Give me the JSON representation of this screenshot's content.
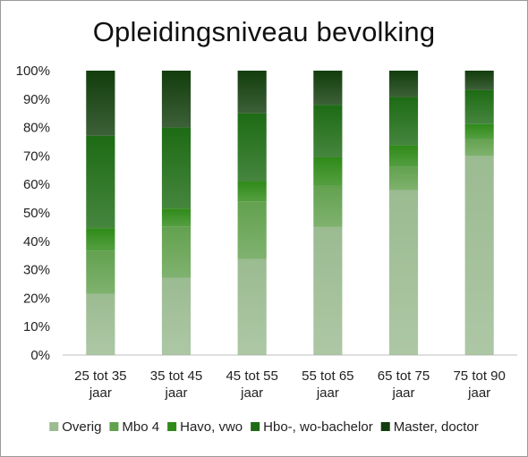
{
  "chart_data": {
    "type": "bar",
    "stacked": true,
    "title": "Opleidingsniveau bevolking",
    "xlabel": "",
    "ylabel": "",
    "ylim": [
      0,
      100
    ],
    "yticks": [
      "0%",
      "10%",
      "20%",
      "30%",
      "40%",
      "50%",
      "60%",
      "70%",
      "80%",
      "90%",
      "100%"
    ],
    "categories": [
      [
        "25 tot 35",
        "jaar"
      ],
      [
        "35 tot 45",
        "jaar"
      ],
      [
        "45 tot 55",
        "jaar"
      ],
      [
        "55 tot 65",
        "jaar"
      ],
      [
        "65 tot 75",
        "jaar"
      ],
      [
        "75 tot 90",
        "jaar"
      ]
    ],
    "series": [
      {
        "name": "Overig",
        "color": "#9bbb91",
        "values": [
          21.5,
          27.2,
          33.7,
          45.0,
          58.0,
          70.0
        ]
      },
      {
        "name": "Mbo 4",
        "color": "#63a14f",
        "values": [
          15.2,
          18.0,
          20.3,
          14.6,
          8.1,
          6.1
        ]
      },
      {
        "name": "Havo, vwo",
        "color": "#2f8a18",
        "values": [
          7.9,
          6.3,
          7.0,
          9.9,
          7.6,
          5.1
        ]
      },
      {
        "name": "Hbo-, wo-bachelor",
        "color": "#1d6b14",
        "values": [
          32.5,
          28.5,
          24.0,
          18.5,
          17.0,
          12.0
        ]
      },
      {
        "name": "Master, doctor",
        "color": "#123d0c",
        "values": [
          22.9,
          20.0,
          15.0,
          12.0,
          9.3,
          6.8
        ]
      }
    ],
    "legend_position": "bottom",
    "grid": false
  }
}
